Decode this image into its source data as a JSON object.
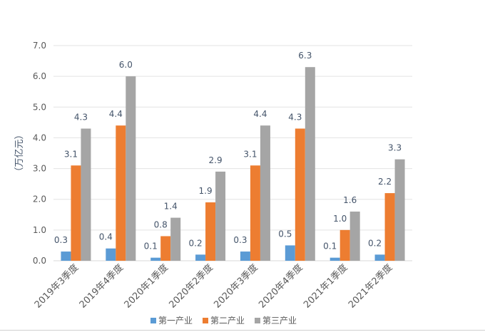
{
  "chart_data": {
    "type": "bar",
    "title": "",
    "xlabel": "",
    "ylabel": "（万亿元）",
    "ylim": [
      0,
      7
    ],
    "y_ticks": [
      "0.0",
      "1.0",
      "2.0",
      "3.0",
      "4.0",
      "5.0",
      "6.0",
      "7.0"
    ],
    "grid": true,
    "legend_position": "bottom",
    "categories": [
      "2019年3季度",
      "2019年4季度",
      "2020年1季度",
      "2020年2季度",
      "2020年3季度",
      "2020年4季度",
      "2021年1季度",
      "2021年2季度"
    ],
    "series": [
      {
        "name": "第一产业",
        "color": "#5b9bd5",
        "values": [
          0.3,
          0.4,
          0.1,
          0.2,
          0.3,
          0.5,
          0.1,
          0.2
        ]
      },
      {
        "name": "第二产业",
        "color": "#ed7d31",
        "values": [
          3.1,
          4.4,
          0.8,
          1.9,
          3.1,
          4.3,
          1.0,
          2.2
        ]
      },
      {
        "name": "第三产业",
        "color": "#a5a5a5",
        "values": [
          4.3,
          6.0,
          1.4,
          2.9,
          4.4,
          6.3,
          1.6,
          3.3
        ]
      }
    ],
    "data_label_color": "#44546a",
    "tick_label_color": "#595959",
    "gridline_color": "#e3e3e3"
  }
}
